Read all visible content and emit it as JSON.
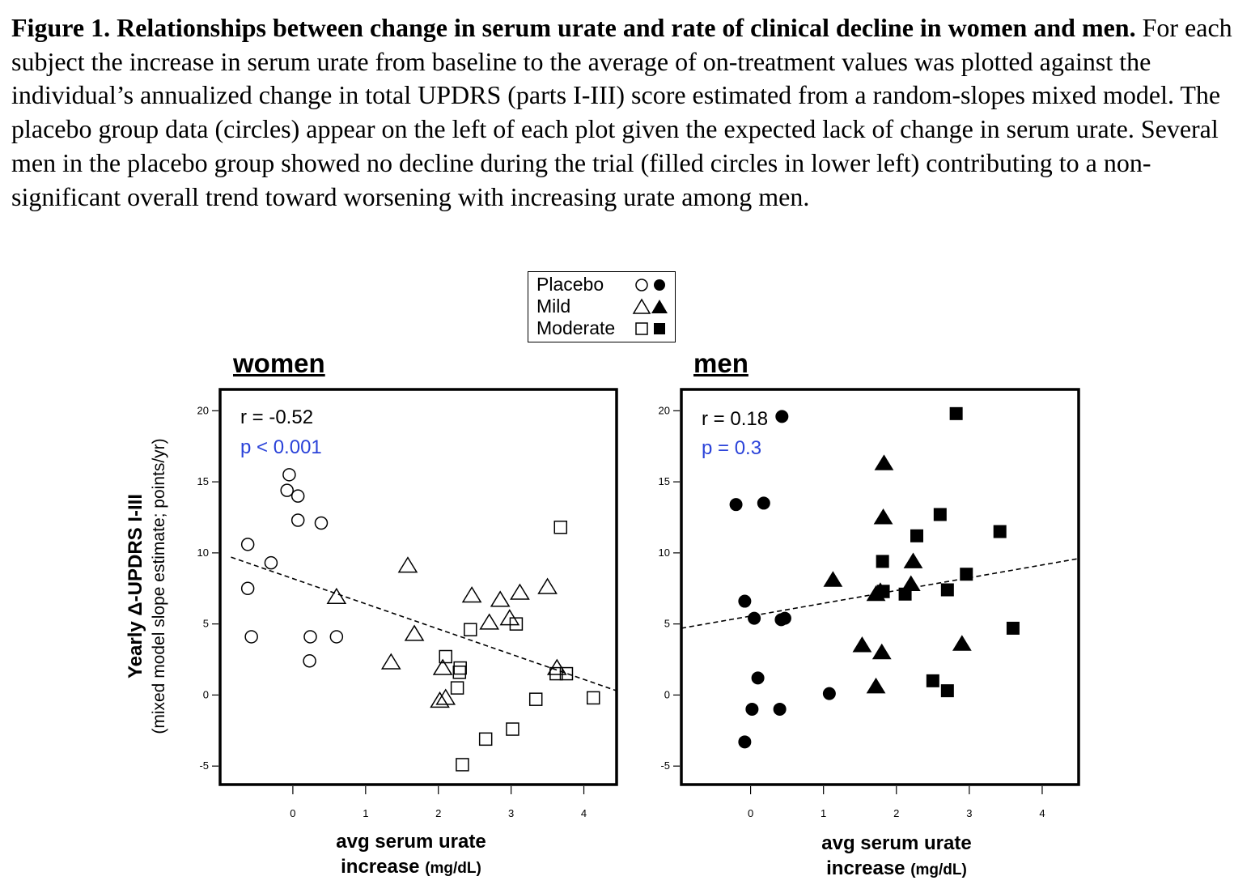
{
  "caption": {
    "lead": "Figure 1.  Relationships between change in serum urate and rate of clinical decline in women and men.",
    "body": " For each subject the increase in serum urate from baseline to the average of on-treatment values was plotted against the individual’s annualized change in total UPDRS (parts I-III) score estimated from a random-slopes mixed model. The placebo group data (circles) appear on the left of each plot given the expected lack of change in serum urate. Several men in the placebo group showed no decline during the trial (filled circles in lower left) contributing to a non-significant overall trend toward worsening with increasing urate among men."
  },
  "legend": {
    "items": [
      {
        "label": "Placebo",
        "shape": "circle"
      },
      {
        "label": "Mild",
        "shape": "triangle"
      },
      {
        "label": "Moderate",
        "shape": "square"
      }
    ]
  },
  "ylabel_main": "Yearly Δ-UPDRS I-III",
  "ylabel_sub": "(mixed model slope estimate; points/yr)",
  "xlabel_main": "avg serum urate",
  "xlabel_second": "increase",
  "xlabel_unit": "(mg/dL)",
  "colors": {
    "p_value": "#2b43d9",
    "marks": "#000000"
  },
  "chart_data": [
    {
      "type": "scatter",
      "title": "women",
      "filled": false,
      "r_text": "r = -0.52",
      "p_text": "p < 0.001",
      "xlim": [
        -1,
        4.45
      ],
      "ylim": [
        -6.3,
        21.5
      ],
      "xticks": [
        0,
        1,
        2,
        3,
        4
      ],
      "yticks": [
        -5,
        0,
        5,
        10,
        15,
        20
      ],
      "trend": {
        "x0": -0.85,
        "y0": 9.7,
        "x1": 4.45,
        "y1": 0.3
      },
      "series": [
        {
          "name": "Placebo",
          "shape": "circle",
          "points": [
            [
              -0.05,
              15.5
            ],
            [
              -0.08,
              14.4
            ],
            [
              0.07,
              14.0
            ],
            [
              0.07,
              12.3
            ],
            [
              0.39,
              12.1
            ],
            [
              -0.62,
              10.6
            ],
            [
              -0.3,
              9.3
            ],
            [
              -0.62,
              7.5
            ],
            [
              -0.57,
              4.1
            ],
            [
              0.24,
              4.1
            ],
            [
              0.6,
              4.1
            ],
            [
              0.23,
              2.4
            ]
          ]
        },
        {
          "name": "Mild",
          "shape": "triangle",
          "points": [
            [
              1.58,
              9.1
            ],
            [
              0.6,
              6.9
            ],
            [
              1.67,
              4.3
            ],
            [
              1.35,
              2.3
            ],
            [
              2.46,
              7.0
            ],
            [
              2.85,
              6.7
            ],
            [
              3.12,
              7.2
            ],
            [
              3.5,
              7.6
            ],
            [
              2.7,
              5.1
            ],
            [
              2.98,
              5.4
            ],
            [
              3.63,
              1.9
            ],
            [
              2.06,
              1.9
            ],
            [
              2.1,
              -0.2
            ],
            [
              2.02,
              -0.4
            ]
          ]
        },
        {
          "name": "Moderate",
          "shape": "square",
          "points": [
            [
              3.68,
              11.8
            ],
            [
              2.44,
              4.6
            ],
            [
              3.07,
              5.0
            ],
            [
              2.1,
              2.7
            ],
            [
              2.3,
              1.9
            ],
            [
              2.29,
              1.6
            ],
            [
              2.26,
              0.5
            ],
            [
              3.62,
              1.5
            ],
            [
              3.76,
              1.5
            ],
            [
              3.34,
              -0.3
            ],
            [
              4.13,
              -0.2
            ],
            [
              2.65,
              -3.1
            ],
            [
              3.02,
              -2.4
            ],
            [
              2.33,
              -4.9
            ]
          ]
        }
      ]
    },
    {
      "type": "scatter",
      "title": "men",
      "filled": true,
      "r_text": "r =  0.18",
      "p_text": "p = 0.3",
      "xlim": [
        -0.95,
        4.5
      ],
      "ylim": [
        -6.3,
        21.5
      ],
      "xticks": [
        0,
        1,
        2,
        3,
        4
      ],
      "yticks": [
        -5,
        0,
        5,
        10,
        15,
        20
      ],
      "trend": {
        "x0": -0.95,
        "y0": 4.7,
        "x1": 4.5,
        "y1": 9.6
      },
      "series": [
        {
          "name": "Placebo",
          "shape": "circle",
          "points": [
            [
              0.43,
              19.6
            ],
            [
              -0.2,
              13.4
            ],
            [
              0.18,
              13.5
            ],
            [
              -0.08,
              6.6
            ],
            [
              0.05,
              5.4
            ],
            [
              0.42,
              5.3
            ],
            [
              0.47,
              5.4
            ],
            [
              0.1,
              1.2
            ],
            [
              1.08,
              0.1
            ],
            [
              0.02,
              -1.0
            ],
            [
              0.4,
              -1.0
            ],
            [
              -0.08,
              -3.3
            ]
          ]
        },
        {
          "name": "Mild",
          "shape": "triangle",
          "points": [
            [
              1.83,
              16.3
            ],
            [
              1.82,
              12.5
            ],
            [
              1.13,
              8.1
            ],
            [
              2.23,
              9.4
            ],
            [
              2.2,
              7.8
            ],
            [
              1.72,
              7.1
            ],
            [
              1.78,
              7.3
            ],
            [
              1.53,
              3.5
            ],
            [
              1.8,
              3.0
            ],
            [
              2.9,
              3.6
            ],
            [
              1.72,
              0.6
            ]
          ]
        },
        {
          "name": "Moderate",
          "shape": "square",
          "points": [
            [
              2.82,
              19.8
            ],
            [
              2.6,
              12.7
            ],
            [
              2.28,
              11.2
            ],
            [
              3.42,
              11.5
            ],
            [
              1.81,
              9.4
            ],
            [
              1.82,
              7.3
            ],
            [
              2.12,
              7.1
            ],
            [
              2.7,
              7.4
            ],
            [
              2.96,
              8.5
            ],
            [
              3.6,
              4.7
            ],
            [
              2.5,
              1.0
            ],
            [
              2.7,
              0.3
            ]
          ]
        }
      ]
    }
  ]
}
